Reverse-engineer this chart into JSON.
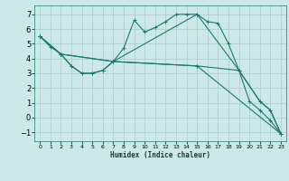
{
  "xlabel": "Humidex (Indice chaleur)",
  "ylabel": "",
  "background_color": "#cce8e8",
  "grid_color": "#aacccc",
  "line_color": "#1a7a6e",
  "xlim": [
    -0.5,
    23.5
  ],
  "ylim": [
    -1.6,
    7.6
  ],
  "yticks": [
    -1,
    0,
    1,
    2,
    3,
    4,
    5,
    6,
    7
  ],
  "xticks": [
    0,
    1,
    2,
    3,
    4,
    5,
    6,
    7,
    8,
    9,
    10,
    11,
    12,
    13,
    14,
    15,
    16,
    17,
    18,
    19,
    20,
    21,
    22,
    23
  ],
  "lines": [
    {
      "x": [
        0,
        1,
        2,
        3,
        4,
        5,
        6,
        7,
        8,
        9,
        10,
        11,
        12,
        13,
        14,
        15,
        16,
        17,
        18,
        19,
        20,
        21,
        22,
        23
      ],
      "y": [
        5.5,
        4.8,
        4.3,
        3.5,
        3.0,
        3.0,
        3.2,
        3.8,
        4.7,
        6.6,
        5.8,
        6.1,
        6.5,
        7.0,
        7.0,
        7.0,
        6.5,
        6.4,
        5.0,
        3.2,
        1.1,
        0.5,
        -0.2,
        -1.1
      ]
    },
    {
      "x": [
        0,
        2,
        3,
        4,
        5,
        6,
        7,
        15,
        19,
        21,
        22,
        23
      ],
      "y": [
        5.5,
        4.3,
        3.5,
        3.0,
        3.0,
        3.2,
        3.8,
        3.5,
        3.2,
        1.1,
        0.5,
        -1.1
      ]
    },
    {
      "x": [
        0,
        2,
        7,
        15,
        23
      ],
      "y": [
        5.5,
        4.3,
        3.8,
        3.5,
        -1.1
      ]
    },
    {
      "x": [
        0,
        2,
        7,
        15,
        19,
        21,
        22,
        23
      ],
      "y": [
        5.5,
        4.3,
        3.8,
        7.0,
        3.2,
        1.1,
        0.5,
        -1.1
      ]
    }
  ]
}
